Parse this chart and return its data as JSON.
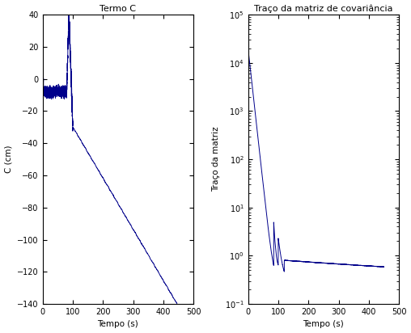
{
  "fig_width": 5.08,
  "fig_height": 4.12,
  "dpi": 100,
  "bg_color": "#ffffff",
  "line_color": "#00008B",
  "line_width": 0.7,
  "left_title": "Termo C",
  "left_xlabel": "Tempo (s)",
  "left_ylabel": "C (cm)",
  "left_xlim": [
    0,
    500
  ],
  "left_ylim": [
    -140,
    40
  ],
  "left_yticks": [
    -140,
    -120,
    -100,
    -80,
    -60,
    -40,
    -20,
    0,
    20,
    40
  ],
  "left_xticks": [
    0,
    100,
    200,
    300,
    400,
    500
  ],
  "right_title": "Traço da matriz de covariância",
  "right_xlabel": "Tempo (s)",
  "right_ylabel": "Traço da matriz",
  "right_xlim": [
    0,
    500
  ],
  "right_xticks": [
    0,
    100,
    200,
    300,
    400,
    500
  ],
  "right_ylim": [
    0.1,
    100000
  ],
  "title_fontsize": 8,
  "label_fontsize": 7.5,
  "tick_fontsize": 7
}
